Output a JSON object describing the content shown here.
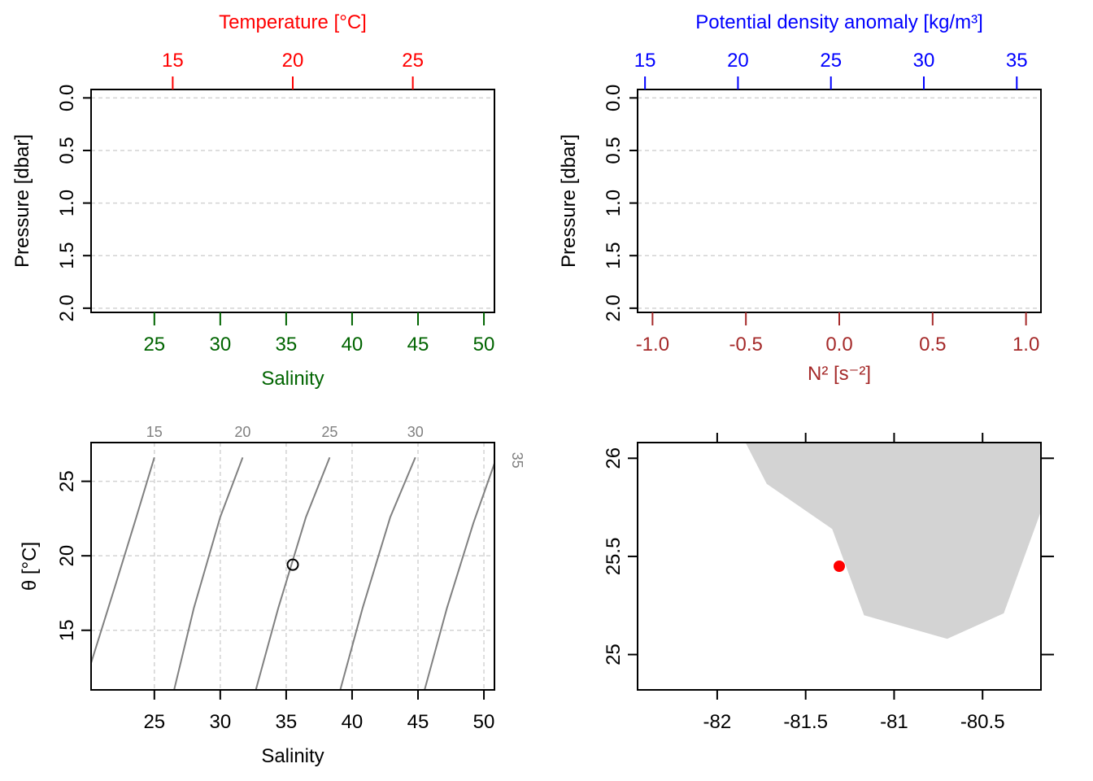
{
  "colors": {
    "temperature": "#ff0000",
    "density": "#0000ff",
    "salinity": "#006400",
    "n2": "#a52a2a",
    "isopycnal": "#808080",
    "land": "#d3d3d3",
    "station": "#ff0000",
    "grid": "#d3d3d3"
  },
  "chart_data": [
    {
      "id": "profile-ts",
      "type": "line",
      "title": "",
      "top_axis": {
        "label": "Temperature [°C]",
        "ticks": [
          15,
          20,
          25
        ],
        "range": [
          11.6,
          28.4
        ]
      },
      "bottom_axis": {
        "label": "Salinity",
        "ticks": [
          25,
          30,
          35,
          40,
          45,
          50
        ],
        "range": [
          20.2,
          50.8
        ]
      },
      "left_axis": {
        "label": "Pressure [dbar]",
        "ticks": [
          "0.0",
          "0.5",
          "1.0",
          "1.5",
          "2.0"
        ],
        "range": [
          0.0,
          2.0
        ],
        "reversed": true
      },
      "grid": true,
      "series": []
    },
    {
      "id": "profile-density",
      "type": "line",
      "title": "",
      "top_axis": {
        "label": "Potential density anomaly [kg/m³]",
        "ticks": [
          15,
          20,
          25,
          30,
          35
        ],
        "range": [
          14.6,
          36.3
        ]
      },
      "bottom_axis": {
        "label": "N² [s⁻²]",
        "ticks": [
          "-1.0",
          "-0.5",
          "0.0",
          "0.5",
          "1.0"
        ],
        "range": [
          -1.08,
          1.08
        ]
      },
      "left_axis": {
        "label": "Pressure [dbar]",
        "ticks": [
          "0.0",
          "0.5",
          "1.0",
          "1.5",
          "2.0"
        ],
        "range": [
          0.0,
          2.0
        ],
        "reversed": true
      },
      "grid": true,
      "series": []
    },
    {
      "id": "ts-diagram",
      "type": "scatter",
      "title": "",
      "xlabel": "Salinity",
      "ylabel": "θ [°C]",
      "xlim": [
        20.2,
        50.8
      ],
      "ylim": [
        11.0,
        27.6
      ],
      "xticks": [
        25,
        30,
        35,
        40,
        45,
        50
      ],
      "yticks": [
        15,
        20,
        25
      ],
      "grid": true,
      "isopycnals": [
        {
          "label": "15",
          "points": [
            [
              20.2,
              12.8
            ],
            [
              22.0,
              17.9
            ],
            [
              23.6,
              22.5
            ],
            [
              25.0,
              26.6
            ]
          ]
        },
        {
          "label": "20",
          "points": [
            [
              26.5,
              11.0
            ],
            [
              28.0,
              16.5
            ],
            [
              30.0,
              22.6
            ],
            [
              31.7,
              26.6
            ]
          ]
        },
        {
          "label": "25",
          "points": [
            [
              32.7,
              11.0
            ],
            [
              34.4,
              16.5
            ],
            [
              36.5,
              22.6
            ],
            [
              38.3,
              26.6
            ]
          ]
        },
        {
          "label": "30",
          "points": [
            [
              39.1,
              11.0
            ],
            [
              40.8,
              16.5
            ],
            [
              42.9,
              22.6
            ],
            [
              44.8,
              26.6
            ]
          ]
        },
        {
          "label": "35",
          "points": [
            [
              45.5,
              11.0
            ],
            [
              47.2,
              16.5
            ],
            [
              49.2,
              22.2
            ],
            [
              50.8,
              26.2
            ]
          ]
        }
      ],
      "points": [
        {
          "x": 35.5,
          "y": 19.4
        }
      ]
    },
    {
      "id": "map",
      "type": "scatter",
      "title": "",
      "xlim": [
        -82.45,
        -80.17
      ],
      "ylim": [
        24.82,
        26.08
      ],
      "xticks": [
        "-82",
        "-81.5",
        "-81",
        "-80.5"
      ],
      "yticks": [
        "25",
        "25.5",
        "26"
      ],
      "land": [
        [
          -81.84,
          26.08
        ],
        [
          -81.72,
          25.87
        ],
        [
          -81.35,
          25.64
        ],
        [
          -81.17,
          25.2
        ],
        [
          -80.7,
          25.08
        ],
        [
          -80.38,
          25.21
        ],
        [
          -80.17,
          25.73
        ],
        [
          -80.17,
          26.08
        ]
      ],
      "station": {
        "lon": -81.31,
        "lat": 25.45
      }
    }
  ]
}
